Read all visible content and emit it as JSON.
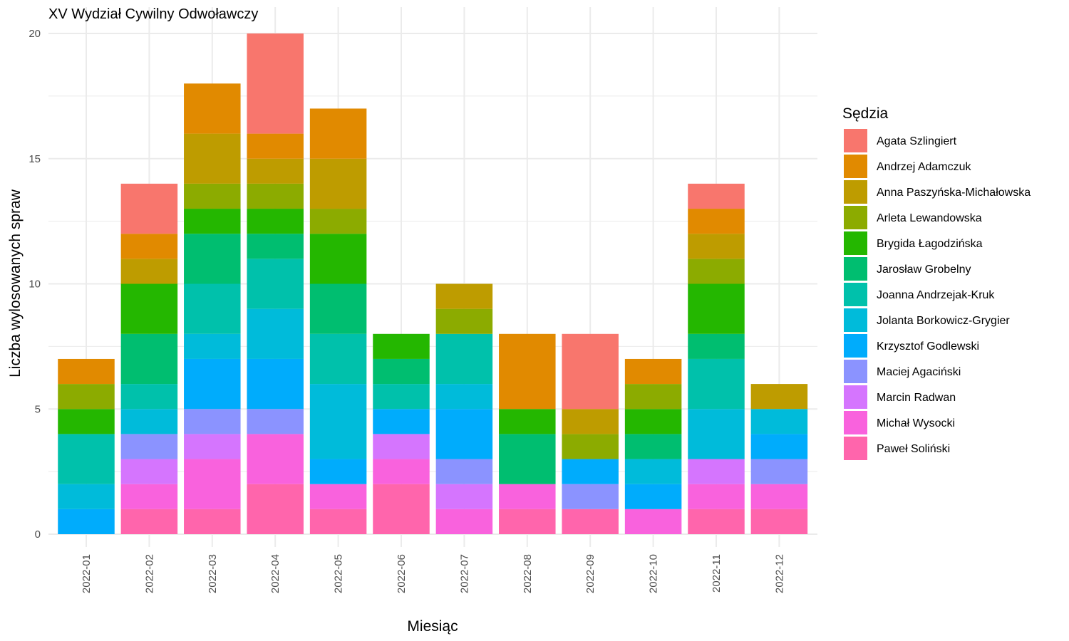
{
  "chart_data": {
    "type": "bar",
    "stacked": true,
    "title": "XV Wydział Cywilny Odwoławczy",
    "xlabel": "Miesiąc",
    "ylabel": "Liczba wylosowanych spraw",
    "ylim": [
      0,
      20
    ],
    "yticks": [
      0,
      5,
      10,
      15,
      20
    ],
    "grid": true,
    "legend_title": "Sędzia",
    "legend_position": "right",
    "categories": [
      "2022-01",
      "2022-02",
      "2022-03",
      "2022-04",
      "2022-05",
      "2022-06",
      "2022-07",
      "2022-08",
      "2022-09",
      "2022-10",
      "2022-11",
      "2022-12"
    ],
    "series": [
      {
        "name": "Agata Szlingiert",
        "color": "#F8766D",
        "values": [
          0,
          2,
          0,
          4,
          0,
          0,
          0,
          0,
          3,
          0,
          1,
          0
        ]
      },
      {
        "name": "Andrzej Adamczuk",
        "color": "#E18A00",
        "values": [
          1,
          1,
          2,
          1,
          2,
          0,
          0,
          3,
          0,
          1,
          1,
          0
        ]
      },
      {
        "name": "Anna Paszyńska-Michałowska",
        "color": "#BE9C00",
        "values": [
          0,
          1,
          2,
          1,
          2,
          0,
          1,
          0,
          1,
          0,
          1,
          1
        ]
      },
      {
        "name": "Arleta Lewandowska",
        "color": "#8CAB00",
        "values": [
          1,
          0,
          1,
          1,
          1,
          0,
          1,
          0,
          1,
          1,
          1,
          0
        ]
      },
      {
        "name": "Brygida Łagodzińska",
        "color": "#24B700",
        "values": [
          1,
          2,
          1,
          1,
          2,
          1,
          0,
          1,
          0,
          1,
          2,
          0
        ]
      },
      {
        "name": "Jarosław Grobelny",
        "color": "#00BE70",
        "values": [
          0,
          2,
          2,
          1,
          2,
          1,
          0,
          2,
          0,
          1,
          1,
          0
        ]
      },
      {
        "name": "Joanna Andrzejak-Kruk",
        "color": "#00C1AB",
        "values": [
          2,
          1,
          2,
          2,
          2,
          1,
          2,
          0,
          0,
          0,
          2,
          0
        ]
      },
      {
        "name": "Jolanta Borkowicz-Grygier",
        "color": "#00BBDA",
        "values": [
          1,
          1,
          1,
          2,
          3,
          0,
          1,
          0,
          0,
          1,
          2,
          1
        ]
      },
      {
        "name": "Krzysztof Godlewski",
        "color": "#00ACFC",
        "values": [
          1,
          0,
          2,
          2,
          1,
          1,
          2,
          0,
          1,
          1,
          0,
          1
        ]
      },
      {
        "name": "Maciej Agaciński",
        "color": "#8B93FF",
        "values": [
          0,
          1,
          1,
          1,
          0,
          0,
          1,
          0,
          1,
          0,
          0,
          1
        ]
      },
      {
        "name": "Marcin Radwan",
        "color": "#D575FE",
        "values": [
          0,
          1,
          1,
          0,
          0,
          1,
          1,
          0,
          0,
          0,
          1,
          0
        ]
      },
      {
        "name": "Michał Wysocki",
        "color": "#F962DD",
        "values": [
          0,
          1,
          2,
          2,
          1,
          1,
          1,
          1,
          0,
          1,
          1,
          1
        ]
      },
      {
        "name": "Paweł Soliński",
        "color": "#FF65AC",
        "values": [
          0,
          1,
          1,
          2,
          1,
          2,
          0,
          1,
          1,
          0,
          1,
          1
        ]
      }
    ]
  }
}
